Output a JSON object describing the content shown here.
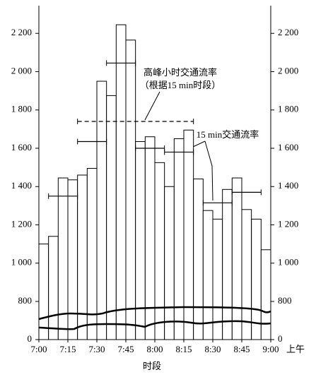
{
  "chart_data": {
    "type": "bar",
    "xlabel": "时段",
    "xlabel_suffix": "上午",
    "xticks": [
      "7:00",
      "7:15",
      "7:30",
      "7:45",
      "8:00",
      "8:15",
      "8:30",
      "8:45",
      "9:00"
    ],
    "values": [
      1100,
      1140,
      1445,
      1435,
      1460,
      1495,
      1950,
      1875,
      2245,
      2165,
      1635,
      1660,
      1525,
      1400,
      1650,
      1695,
      1440,
      1275,
      1230,
      1385,
      1445,
      1280,
      1230,
      1070
    ],
    "color": "#ffffff",
    "edge_color": "#000000",
    "ylim": [
      0,
      2330
    ],
    "yticks": [
      0,
      800,
      {
        "value": 1000,
        "label": "1 000"
      },
      {
        "value": 1200,
        "label": "1 200"
      },
      {
        "value": 1400,
        "label": "1 400"
      },
      {
        "value": 1600,
        "label": "1 600"
      },
      {
        "value": 1800,
        "label": "1 800"
      },
      {
        "value": 2000,
        "label": "2 000"
      },
      {
        "value": 2200,
        "label": "2 200"
      }
    ],
    "axis_break": true,
    "rate_series": [
      {
        "name": "15 min交通流率",
        "style": "solid",
        "values": [
          null,
          1350,
          1350,
          1350,
          1635,
          1635,
          1635,
          2045,
          2045,
          2045,
          1600,
          1600,
          1600,
          1580,
          1580,
          1580,
          null,
          1315,
          1315,
          1315,
          1370,
          1370,
          1370,
          null
        ]
      },
      {
        "name": "高峰小时交通流率",
        "note": "（根据15 min时段）",
        "style": "dashed",
        "values": [
          null,
          null,
          null,
          null,
          1740,
          1740,
          1740,
          1740,
          1740,
          1740,
          1740,
          1740,
          1740,
          1740,
          1740,
          1740,
          null,
          null,
          null,
          null,
          null,
          null,
          null,
          null
        ]
      }
    ]
  }
}
